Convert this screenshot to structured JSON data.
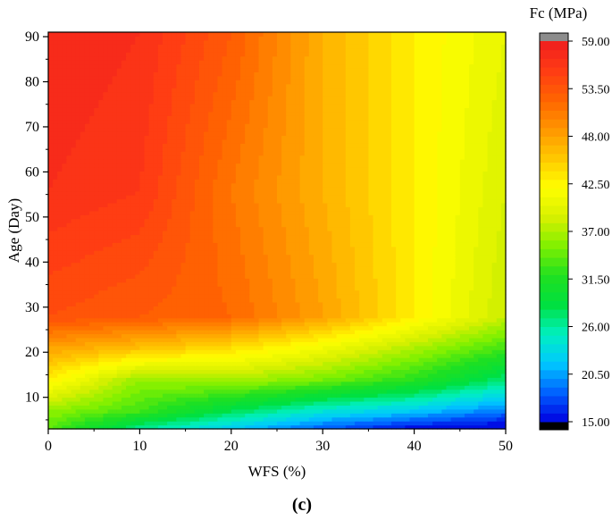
{
  "chart_data": {
    "type": "heatmap",
    "subtype": "filled-contour",
    "title": "",
    "panel_label": "(c)",
    "xlabel": "WFS (%)",
    "ylabel": "Age (Day)",
    "xlim": [
      0,
      50
    ],
    "ylim": [
      3,
      91
    ],
    "xticks": [
      0,
      10,
      20,
      30,
      40,
      50
    ],
    "yticks": [
      10,
      20,
      30,
      40,
      50,
      60,
      70,
      80,
      90
    ],
    "colorbar": {
      "title": "Fc (MPa)",
      "range": [
        15.0,
        59.0
      ],
      "ticks": [
        "59.00",
        "53.50",
        "48.00",
        "42.50",
        "37.00",
        "31.50",
        "26.00",
        "20.50",
        "15.00"
      ],
      "overflow_color": "#8c8c8c",
      "underflow_color": "#000000"
    },
    "colormap": [
      "#0000e0",
      "#0060ff",
      "#00c8ff",
      "#00f0c0",
      "#00e040",
      "#20e020",
      "#80f000",
      "#d8f000",
      "#ffff00",
      "#ffc800",
      "#ff9600",
      "#ff6400",
      "#ff3c14",
      "#f01e1e"
    ],
    "wfs": [
      0,
      10,
      20,
      30,
      40,
      50
    ],
    "ages": [
      3,
      7,
      14,
      21,
      28,
      56,
      91
    ],
    "fc": [
      [
        34,
        26,
        22,
        18,
        15,
        14
      ],
      [
        36,
        33,
        28,
        24,
        22,
        19
      ],
      [
        43,
        36,
        37,
        35,
        32,
        27
      ],
      [
        48,
        46,
        44,
        41,
        37,
        33
      ],
      [
        54,
        53,
        52,
        48,
        43,
        38
      ],
      [
        57,
        56,
        51,
        47,
        43,
        39
      ],
      [
        58,
        57,
        53,
        47,
        43,
        40
      ]
    ]
  }
}
